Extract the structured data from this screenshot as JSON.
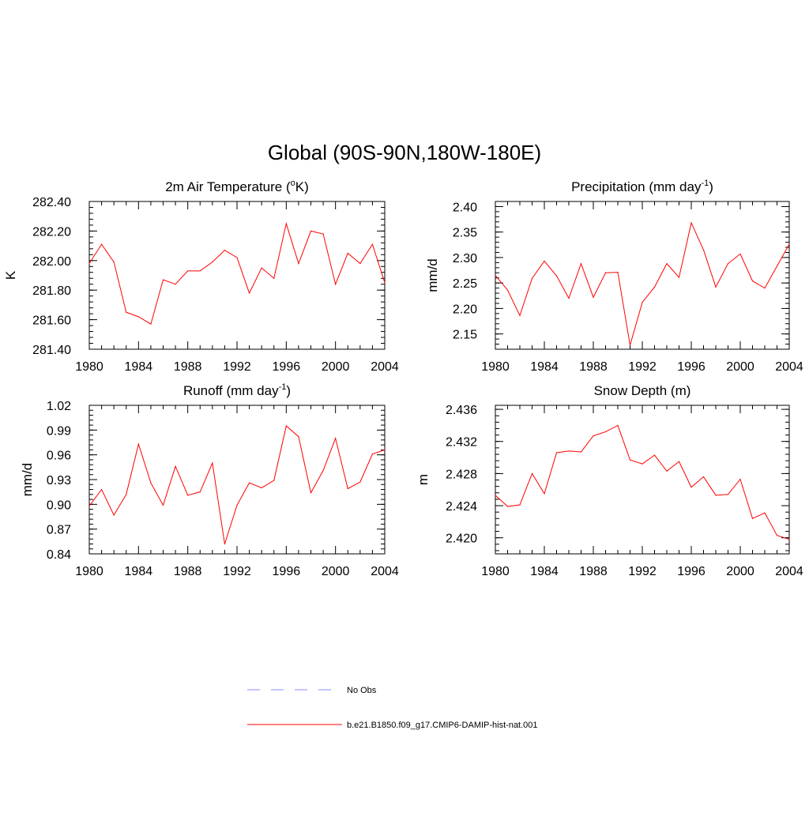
{
  "title": "Global (90S-90N,180W-180E)",
  "legend": {
    "entries": [
      {
        "label": "No Obs",
        "color": "#8888ff",
        "dash": "dashed"
      },
      {
        "label": "b.e21.B1850.f09_g17.CMIP6-DAMIP-hist-nat.001",
        "color": "#ff0000",
        "dash": "solid"
      }
    ]
  },
  "chart_data": [
    {
      "type": "line",
      "title": {
        "main": "2m Air Temperature (",
        "sup": "o",
        "end": "K)"
      },
      "ylabel": "K",
      "xlim": [
        1980,
        2004
      ],
      "ylim": [
        281.4,
        282.4
      ],
      "xticks": [
        "1980",
        "1984",
        "1988",
        "1992",
        "1996",
        "2000",
        "2004"
      ],
      "yticks": [
        "281.40",
        "281.60",
        "281.80",
        "282.00",
        "282.20",
        "282.40"
      ],
      "y_minor_step": 0.04,
      "series": [
        {
          "color": "#ff0000",
          "x": [
            1980,
            1981,
            1982,
            1983,
            1984,
            1985,
            1986,
            1987,
            1988,
            1989,
            1990,
            1991,
            1992,
            1993,
            1994,
            1995,
            1996,
            1997,
            1998,
            1999,
            2000,
            2001,
            2002,
            2003,
            2004
          ],
          "values": [
            281.98,
            282.11,
            281.99,
            281.65,
            281.62,
            281.57,
            281.87,
            281.84,
            281.93,
            281.93,
            281.99,
            282.07,
            282.02,
            281.78,
            281.95,
            281.88,
            282.25,
            281.98,
            282.2,
            282.18,
            281.84,
            282.05,
            281.98,
            282.11,
            281.85
          ]
        }
      ]
    },
    {
      "type": "line",
      "title": {
        "main": "Precipitation (mm day",
        "sup": "-1",
        "end": ")"
      },
      "ylabel": "mm/d",
      "xlim": [
        1980,
        2004
      ],
      "ylim": [
        2.12,
        2.41
      ],
      "xticks": [
        "1980",
        "1984",
        "1988",
        "1992",
        "1996",
        "2000",
        "2004"
      ],
      "yticks": [
        "2.15",
        "2.20",
        "2.25",
        "2.30",
        "2.35",
        "2.40"
      ],
      "y_minor_step": 0.01,
      "series": [
        {
          "color": "#ff0000",
          "x": [
            1980,
            1981,
            1982,
            1983,
            1984,
            1985,
            1986,
            1987,
            1988,
            1989,
            1990,
            1991,
            1992,
            1993,
            1994,
            1995,
            1996,
            1997,
            1998,
            1999,
            2000,
            2001,
            2002,
            2003,
            2004
          ],
          "values": [
            2.265,
            2.236,
            2.186,
            2.259,
            2.293,
            2.264,
            2.22,
            2.288,
            2.222,
            2.27,
            2.271,
            2.128,
            2.212,
            2.242,
            2.288,
            2.261,
            2.368,
            2.315,
            2.242,
            2.288,
            2.307,
            2.254,
            2.24,
            2.283,
            2.326
          ]
        }
      ]
    },
    {
      "type": "line",
      "title": {
        "main": "Runoff (mm day",
        "sup": "-1",
        "end": ")"
      },
      "ylabel": "mm/d",
      "xlim": [
        1980,
        2004
      ],
      "ylim": [
        0.84,
        1.02
      ],
      "xticks": [
        "1980",
        "1984",
        "1988",
        "1992",
        "1996",
        "2000",
        "2004"
      ],
      "yticks": [
        "0.84",
        "0.87",
        "0.90",
        "0.93",
        "0.96",
        "0.99",
        "1.02"
      ],
      "y_minor_step": 0.006,
      "series": [
        {
          "color": "#ff0000",
          "x": [
            1980,
            1981,
            1982,
            1983,
            1984,
            1985,
            1986,
            1987,
            1988,
            1989,
            1990,
            1991,
            1992,
            1993,
            1994,
            1995,
            1996,
            1997,
            1998,
            1999,
            2000,
            2001,
            2002,
            2003,
            2004
          ],
          "values": [
            0.898,
            0.918,
            0.887,
            0.912,
            0.973,
            0.926,
            0.899,
            0.946,
            0.911,
            0.915,
            0.95,
            0.852,
            0.899,
            0.926,
            0.92,
            0.929,
            0.995,
            0.982,
            0.914,
            0.941,
            0.98,
            0.919,
            0.927,
            0.961,
            0.966
          ]
        }
      ]
    },
    {
      "type": "line",
      "title": {
        "main": "Snow Depth (m)",
        "sup": "",
        "end": ""
      },
      "ylabel": "m",
      "xlim": [
        1980,
        2004
      ],
      "ylim": [
        2.418,
        2.4365
      ],
      "xticks": [
        "1980",
        "1984",
        "1988",
        "1992",
        "1996",
        "2000",
        "2004"
      ],
      "yticks": [
        "2.420",
        "2.424",
        "2.428",
        "2.432",
        "2.436"
      ],
      "y_minor_step": 0.0008,
      "series": [
        {
          "color": "#ff0000",
          "x": [
            1980,
            1981,
            1982,
            1983,
            1984,
            1985,
            1986,
            1987,
            1988,
            1989,
            1990,
            1991,
            1992,
            1993,
            1994,
            1995,
            1996,
            1997,
            1998,
            1999,
            2000,
            2001,
            2002,
            2003,
            2004
          ],
          "values": [
            2.4253,
            2.4239,
            2.4241,
            2.428,
            2.4255,
            2.4306,
            2.4308,
            2.4307,
            2.4327,
            2.4332,
            2.434,
            2.4297,
            2.4292,
            2.4303,
            2.4283,
            2.4295,
            2.4263,
            2.4276,
            2.4253,
            2.4254,
            2.4273,
            2.4224,
            2.4231,
            2.4203,
            2.4198
          ]
        }
      ]
    }
  ]
}
